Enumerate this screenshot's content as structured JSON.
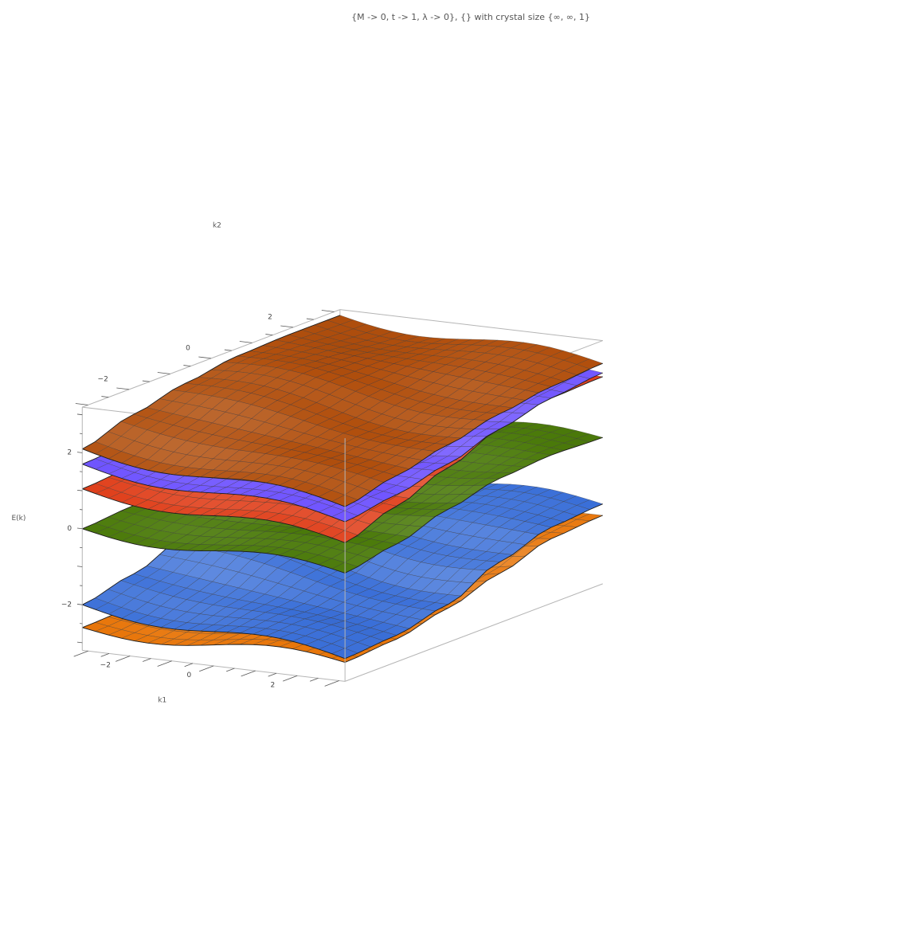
{
  "chart_data": {
    "type": "surface3d",
    "title": "{M -> 0, t -> 1, λ -> 0}, {} with crystal size {∞, ∞, 1}",
    "xlabel": "k1",
    "ylabel": "k2",
    "zlabel": "E(k)",
    "x_range": [
      -3.14159,
      3.14159
    ],
    "y_range": [
      -3.14159,
      3.14159
    ],
    "z_range": [
      -3.2,
      3.2
    ],
    "x_ticks": [
      "-2",
      "0",
      "2"
    ],
    "y_ticks": [
      "-2",
      "0",
      "2"
    ],
    "z_ticks": [
      "-2",
      "0",
      "2"
    ],
    "mesh_lines": 21,
    "series": [
      {
        "color": "#e8760a",
        "edge_values": {
          "k1=-π": [
            -2.6,
            -2.55,
            -2.5,
            -2.4,
            -2.5,
            -2.55
          ],
          "k1=+π": [
            -2.7,
            -2.6,
            -2.3,
            -1.9,
            -1.5,
            -1.4
          ]
        }
      },
      {
        "color": "#3a6fd8",
        "edge_values": {
          "k1=-π": [
            -2.0,
            -1.7,
            -1.2,
            -0.9,
            -0.8,
            -0.85
          ],
          "k1=+π": [
            -2.6,
            -2.5,
            -2.2,
            -1.6,
            -1.2,
            -1.1
          ]
        }
      },
      {
        "color": "#4b7a0a",
        "edge_values": {
          "k1=-π": [
            0.0,
            0.1,
            0.4,
            0.6,
            0.7,
            0.6
          ],
          "k1=+π": [
            -0.35,
            -0.1,
            0.3,
            0.6,
            0.7,
            0.65
          ]
        }
      },
      {
        "color": "#e0401c",
        "edge_values": {
          "k1=-π": [
            1.05,
            1.15,
            1.25,
            1.35,
            1.3,
            1.25
          ],
          "k1=+π": [
            0.45,
            0.9,
            1.4,
            1.9,
            2.2,
            2.25
          ]
        }
      },
      {
        "color": "#7055ff",
        "edge_values": {
          "k1=-π": [
            1.7,
            1.8,
            1.9,
            2.0,
            2.05,
            2.1
          ],
          "k1=+π": [
            1.0,
            1.2,
            1.5,
            1.9,
            2.2,
            2.35
          ]
        }
      },
      {
        "color": "#b14f0d",
        "edge_values": {
          "k1=-π": [
            2.1,
            2.5,
            2.8,
            3.0,
            3.05,
            3.05
          ],
          "k1=+π": [
            1.4,
            1.7,
            2.0,
            2.3,
            2.5,
            2.6
          ]
        }
      }
    ],
    "grid": false,
    "legend": "none"
  }
}
